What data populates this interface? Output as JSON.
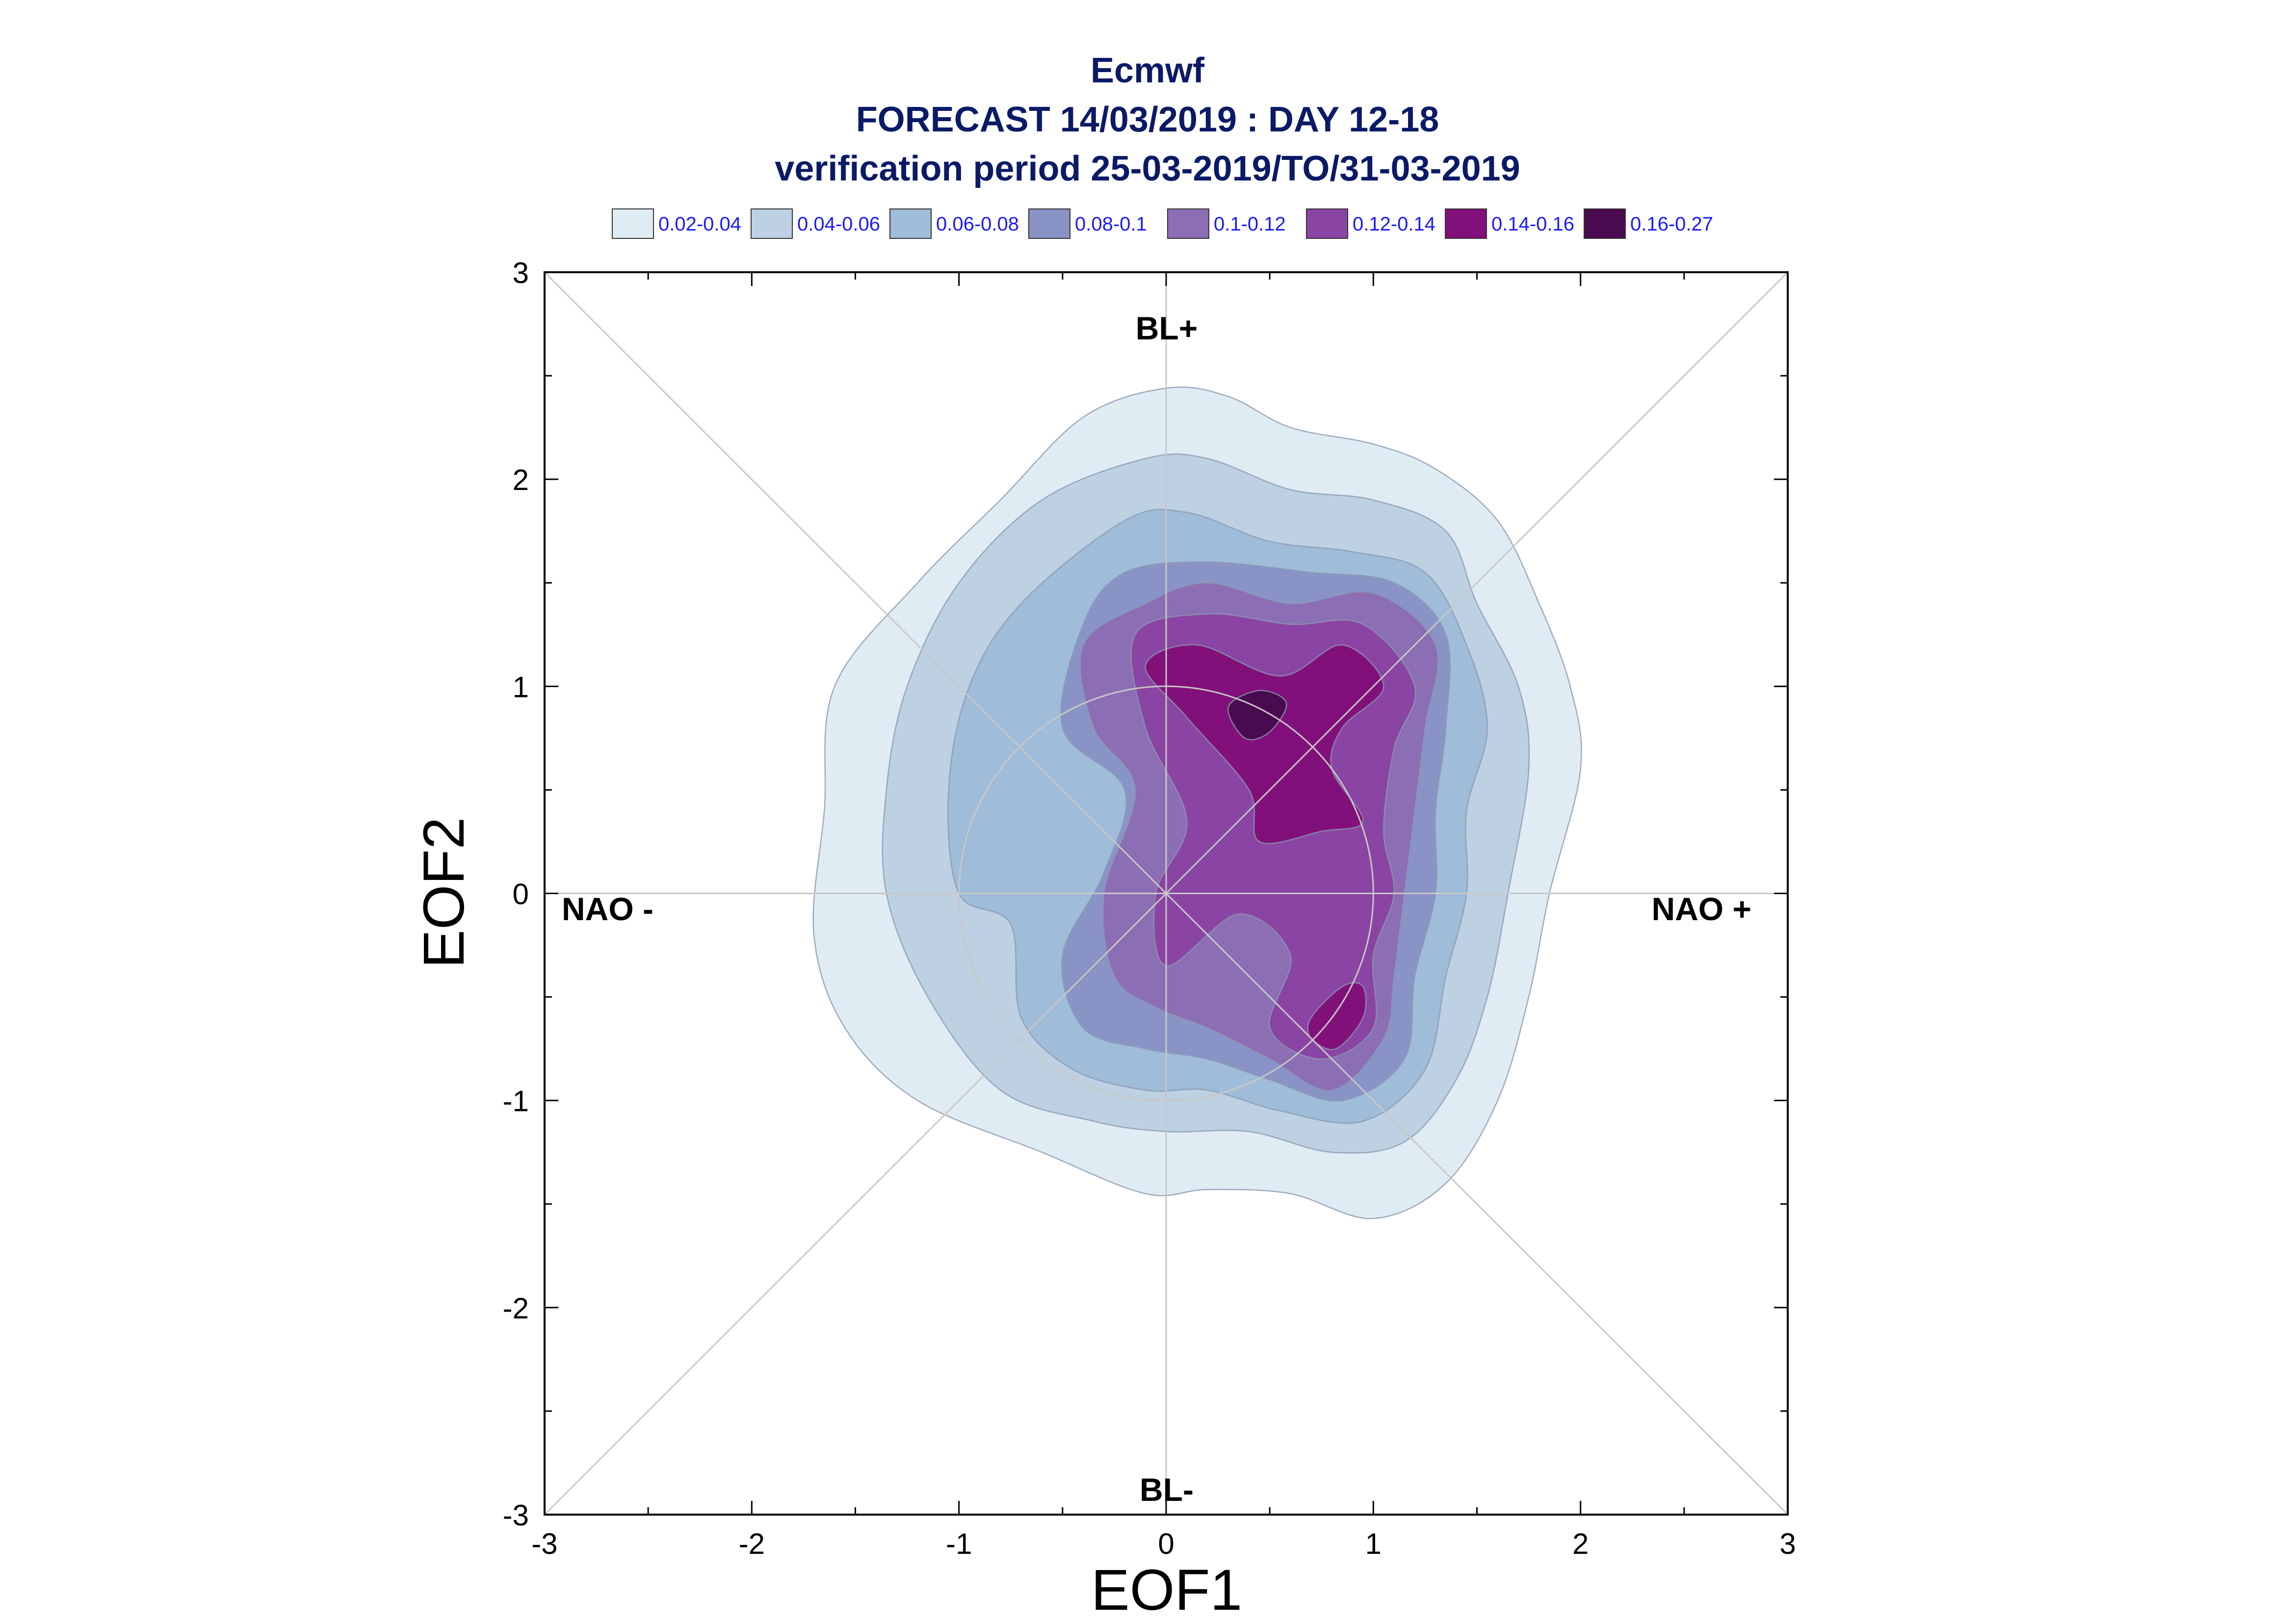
{
  "chart_data": {
    "type": "contour",
    "title": "Ecmwf",
    "subtitle": "FORECAST 14/03/2019 : DAY 12-18",
    "subtitle2": "verification period 25-03-2019/TO/31-03-2019",
    "xlabel": "EOF1",
    "ylabel": "EOF2",
    "xlim": [
      -3,
      3
    ],
    "ylim": [
      -3,
      3
    ],
    "xticks": [
      "-3",
      "-2",
      "-1",
      "0",
      "1",
      "2",
      "3"
    ],
    "yticks": [
      "-3",
      "-2",
      "-1",
      "0",
      "1",
      "2",
      "3"
    ],
    "legend_position": "top",
    "regime_labels": {
      "top": "BL+",
      "bottom": "BL-",
      "left": "NAO -",
      "right": "NAO +"
    },
    "levels": [
      {
        "label": "0.02-0.04",
        "color": "#e0ecf4",
        "contour": [
          [
            0.0,
            2.44
          ],
          [
            0.3,
            2.4
          ],
          [
            0.6,
            2.25
          ],
          [
            1.0,
            2.17
          ],
          [
            1.3,
            2.05
          ],
          [
            1.6,
            1.8
          ],
          [
            1.8,
            1.4
          ],
          [
            1.95,
            1.0
          ],
          [
            2.0,
            0.6
          ],
          [
            1.85,
            0.0
          ],
          [
            1.75,
            -0.5
          ],
          [
            1.6,
            -1.0
          ],
          [
            1.35,
            -1.4
          ],
          [
            1.0,
            -1.57
          ],
          [
            0.6,
            -1.45
          ],
          [
            0.2,
            -1.43
          ],
          [
            -0.1,
            -1.45
          ],
          [
            -0.6,
            -1.25
          ],
          [
            -1.2,
            -1.0
          ],
          [
            -1.55,
            -0.65
          ],
          [
            -1.7,
            -0.2
          ],
          [
            -1.65,
            0.4
          ],
          [
            -1.6,
            1.0
          ],
          [
            -1.2,
            1.5
          ],
          [
            -0.8,
            1.9
          ],
          [
            -0.4,
            2.3
          ]
        ]
      },
      {
        "label": "0.04-0.06",
        "color": "#bdd1e3",
        "contour": [
          [
            -0.1,
            2.1
          ],
          [
            0.2,
            2.1
          ],
          [
            0.6,
            1.95
          ],
          [
            1.0,
            1.9
          ],
          [
            1.35,
            1.75
          ],
          [
            1.5,
            1.4
          ],
          [
            1.7,
            1.0
          ],
          [
            1.75,
            0.6
          ],
          [
            1.65,
            0.0
          ],
          [
            1.55,
            -0.5
          ],
          [
            1.4,
            -0.9
          ],
          [
            1.15,
            -1.2
          ],
          [
            0.8,
            -1.25
          ],
          [
            0.4,
            -1.15
          ],
          [
            0.0,
            -1.15
          ],
          [
            -0.35,
            -1.1
          ],
          [
            -0.8,
            -0.95
          ],
          [
            -1.15,
            -0.5
          ],
          [
            -1.35,
            0.0
          ],
          [
            -1.35,
            0.5
          ],
          [
            -1.25,
            1.0
          ],
          [
            -1.0,
            1.5
          ],
          [
            -0.6,
            1.9
          ]
        ]
      },
      {
        "label": "0.06-0.08",
        "color": "#9fbcd9",
        "contour": [
          [
            -0.2,
            1.8
          ],
          [
            0.1,
            1.84
          ],
          [
            0.5,
            1.7
          ],
          [
            0.9,
            1.65
          ],
          [
            1.25,
            1.55
          ],
          [
            1.45,
            1.2
          ],
          [
            1.55,
            0.8
          ],
          [
            1.45,
            0.4
          ],
          [
            1.45,
            0.0
          ],
          [
            1.35,
            -0.4
          ],
          [
            1.25,
            -0.85
          ],
          [
            0.95,
            -1.1
          ],
          [
            0.55,
            -1.05
          ],
          [
            0.2,
            -0.95
          ],
          [
            -0.1,
            -0.95
          ],
          [
            -0.45,
            -0.85
          ],
          [
            -0.7,
            -0.6
          ],
          [
            -0.75,
            -0.15
          ],
          [
            -1.0,
            0.0
          ],
          [
            -1.05,
            0.5
          ],
          [
            -0.95,
            1.0
          ],
          [
            -0.7,
            1.4
          ]
        ]
      },
      {
        "label": "0.08-0.1",
        "color": "#8a93c6",
        "contour": [
          [
            -0.4,
            1.3
          ],
          [
            -0.2,
            1.55
          ],
          [
            0.2,
            1.6
          ],
          [
            0.7,
            1.55
          ],
          [
            1.1,
            1.5
          ],
          [
            1.35,
            1.25
          ],
          [
            1.35,
            0.8
          ],
          [
            1.3,
            0.4
          ],
          [
            1.3,
            0.0
          ],
          [
            1.2,
            -0.4
          ],
          [
            1.15,
            -0.8
          ],
          [
            0.85,
            -1.0
          ],
          [
            0.5,
            -0.9
          ],
          [
            0.2,
            -0.8
          ],
          [
            -0.1,
            -0.75
          ],
          [
            -0.4,
            -0.65
          ],
          [
            -0.5,
            -0.3
          ],
          [
            -0.3,
            0.1
          ],
          [
            -0.2,
            0.5
          ],
          [
            -0.5,
            0.8
          ]
        ]
      },
      {
        "label": "0.1-0.12",
        "color": "#8c6eb4",
        "contour": [
          [
            -0.4,
            1.2
          ],
          [
            -0.1,
            1.4
          ],
          [
            0.2,
            1.5
          ],
          [
            0.6,
            1.4
          ],
          [
            1.0,
            1.45
          ],
          [
            1.3,
            1.2
          ],
          [
            1.25,
            0.8
          ],
          [
            1.2,
            0.4
          ],
          [
            1.15,
            0.0
          ],
          [
            1.1,
            -0.4
          ],
          [
            1.05,
            -0.7
          ],
          [
            0.8,
            -0.95
          ],
          [
            0.5,
            -0.8
          ],
          [
            0.2,
            -0.65
          ],
          [
            -0.05,
            -0.55
          ],
          [
            -0.25,
            -0.4
          ],
          [
            -0.3,
            0.0
          ],
          [
            -0.15,
            0.5
          ],
          [
            -0.35,
            0.8
          ]
        ]
      },
      {
        "label": "0.12-0.14",
        "color": "#8a44a3",
        "contour": [
          [
            -0.15,
            1.25
          ],
          [
            0.2,
            1.35
          ],
          [
            0.6,
            1.3
          ],
          [
            0.95,
            1.3
          ],
          [
            1.2,
            1.0
          ],
          [
            1.1,
            0.7
          ],
          [
            1.05,
            0.3
          ],
          [
            1.1,
            0.0
          ],
          [
            1.0,
            -0.3
          ],
          [
            1.0,
            -0.65
          ],
          [
            0.75,
            -0.8
          ],
          [
            0.5,
            -0.65
          ],
          [
            0.6,
            -0.3
          ],
          [
            0.35,
            -0.1
          ],
          [
            0.0,
            -0.35
          ],
          [
            -0.05,
            0.0
          ],
          [
            0.1,
            0.35
          ],
          [
            -0.1,
            0.8
          ]
        ]
      },
      {
        "label": "0.14-0.16",
        "color": "#82107a",
        "contour": [
          [
            -0.1,
            1.1
          ],
          [
            0.15,
            1.2
          ],
          [
            0.55,
            1.05
          ],
          [
            0.85,
            1.2
          ],
          [
            1.05,
            1.0
          ],
          [
            0.85,
            0.8
          ],
          [
            0.8,
            0.6
          ],
          [
            0.95,
            0.35
          ],
          [
            0.75,
            0.3
          ],
          [
            0.45,
            0.25
          ],
          [
            0.4,
            0.5
          ],
          [
            0.1,
            0.85
          ]
        ]
      },
      {
        "label": "0.16-0.27",
        "color": "#4a0a4f",
        "contour": [
          [
            0.3,
            0.9
          ],
          [
            0.45,
            0.98
          ],
          [
            0.58,
            0.92
          ],
          [
            0.5,
            0.78
          ],
          [
            0.38,
            0.75
          ]
        ]
      }
    ],
    "extra_contours": [
      {
        "level": "0.14-0.16",
        "color": "#82107a",
        "contour": [
          [
            0.7,
            -0.7
          ],
          [
            0.82,
            -0.75
          ],
          [
            0.95,
            -0.6
          ],
          [
            0.95,
            -0.45
          ],
          [
            0.85,
            -0.45
          ],
          [
            0.7,
            -0.6
          ]
        ]
      }
    ]
  }
}
